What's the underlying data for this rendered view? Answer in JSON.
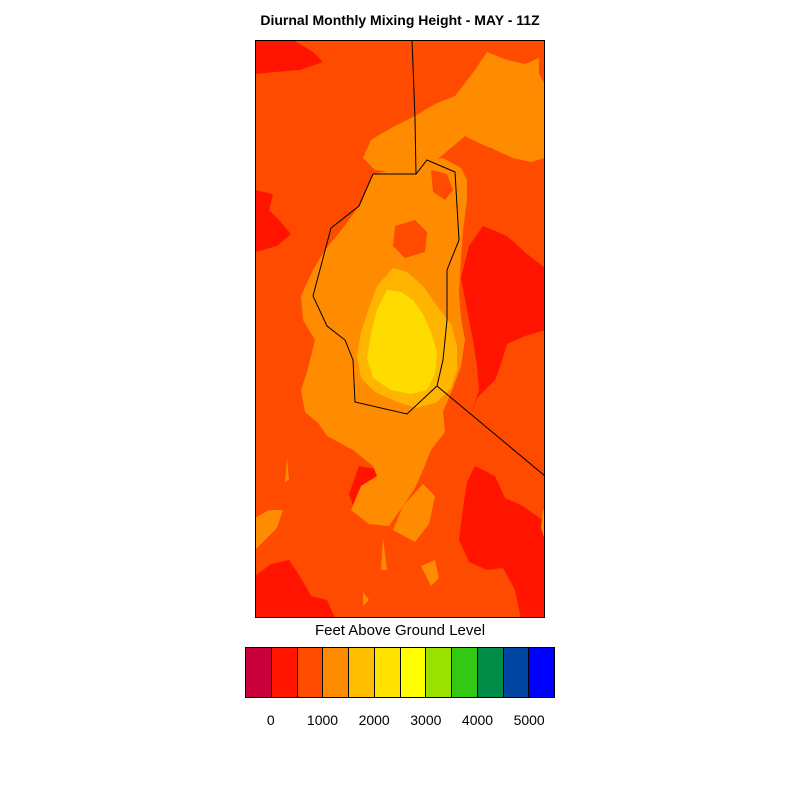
{
  "title": "Diurnal Monthly Mixing Height - MAY - 11Z",
  "legend": {
    "title": "Feet Above Ground Level",
    "colors": [
      "#c8003c",
      "#ff1400",
      "#ff4b00",
      "#ff8c00",
      "#ffbe00",
      "#ffe100",
      "#ffff00",
      "#9be100",
      "#32c814",
      "#008c46",
      "#0046a0",
      "#0000ff"
    ],
    "tick_labels": [
      "0",
      "1000",
      "2000",
      "3000",
      "4000",
      "5000"
    ]
  },
  "map": {
    "palette": {
      "red": "#ff1400",
      "orange_red": "#ff4b00",
      "dark_orange": "#ff8c00",
      "amber": "#ffb400",
      "yellow": "#ffdc00"
    }
  }
}
